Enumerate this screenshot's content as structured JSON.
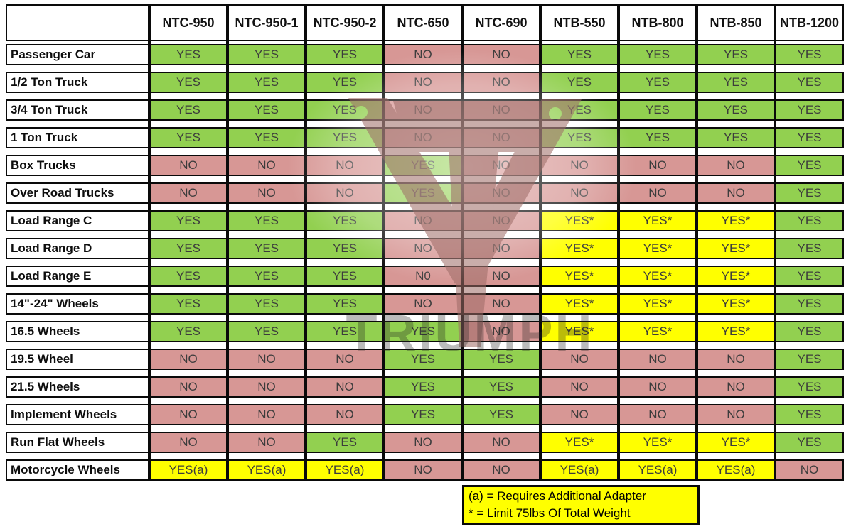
{
  "chart_data": {
    "type": "table",
    "columns": [
      "NTC-950",
      "NTC-950-1",
      "NTC-950-2",
      "NTC-650",
      "NTC-690",
      "NTB-550",
      "NTB-800",
      "NTB-850",
      "NTB-1200"
    ],
    "rows": [
      {
        "label": "Passenger Car",
        "values": [
          "YES",
          "YES",
          "YES",
          "NO",
          "NO",
          "YES",
          "YES",
          "YES",
          "YES"
        ]
      },
      {
        "label": "1/2 Ton Truck",
        "values": [
          "YES",
          "YES",
          "YES",
          "NO",
          "NO",
          "YES",
          "YES",
          "YES",
          "YES"
        ]
      },
      {
        "label": "3/4 Ton Truck",
        "values": [
          "YES",
          "YES",
          "YES",
          "NO",
          "NO",
          "YES",
          "YES",
          "YES",
          "YES"
        ]
      },
      {
        "label": "1 Ton Truck",
        "values": [
          "YES",
          "YES",
          "YES",
          "NO",
          "NO",
          "YES",
          "YES",
          "YES",
          "YES"
        ]
      },
      {
        "label": "Box Trucks",
        "values": [
          "NO",
          "NO",
          "NO",
          "YES",
          "NO",
          "NO",
          "NO",
          "NO",
          "YES"
        ]
      },
      {
        "label": "Over Road Trucks",
        "values": [
          "NO",
          "NO",
          "NO",
          "YES",
          "NO",
          "NO",
          "NO",
          "NO",
          "YES"
        ]
      },
      {
        "label": "Load Range C",
        "values": [
          "YES",
          "YES",
          "YES",
          "NO",
          "NO",
          "YES*",
          "YES*",
          "YES*",
          "YES"
        ]
      },
      {
        "label": "Load Range D",
        "values": [
          "YES",
          "YES",
          "YES",
          "NO",
          "NO",
          "YES*",
          "YES*",
          "YES*",
          "YES"
        ]
      },
      {
        "label": "Load Range E",
        "values": [
          "YES",
          "YES",
          "YES",
          "N0",
          "NO",
          "YES*",
          "YES*",
          "YES*",
          "YES"
        ]
      },
      {
        "label": "14\"-24\" Wheels",
        "values": [
          "YES",
          "YES",
          "YES",
          "NO",
          "NO",
          "YES*",
          "YES*",
          "YES*",
          "YES"
        ]
      },
      {
        "label": "16.5 Wheels",
        "values": [
          "YES",
          "YES",
          "YES",
          "YES",
          "NO",
          "YES*",
          "YES*",
          "YES*",
          "YES"
        ]
      },
      {
        "label": "19.5 Wheel",
        "values": [
          "NO",
          "NO",
          "NO",
          "YES",
          "YES",
          "NO",
          "NO",
          "NO",
          "YES"
        ]
      },
      {
        "label": "21.5 Wheels",
        "values": [
          "NO",
          "NO",
          "NO",
          "YES",
          "YES",
          "NO",
          "NO",
          "NO",
          "YES"
        ]
      },
      {
        "label": "Implement Wheels",
        "values": [
          "NO",
          "NO",
          "NO",
          "YES",
          "YES",
          "NO",
          "NO",
          "NO",
          "YES"
        ]
      },
      {
        "label": "Run Flat Wheels",
        "values": [
          "NO",
          "NO",
          "YES",
          "NO",
          "NO",
          "YES*",
          "YES*",
          "YES*",
          "YES"
        ]
      },
      {
        "label": "Motorcycle Wheels",
        "values": [
          "YES(a)",
          "YES(a)",
          "YES(a)",
          "NO",
          "NO",
          "YES(a)",
          "YES(a)",
          "YES(a)",
          "NO"
        ]
      }
    ],
    "legend": [
      "(a) = Requires Additional Adapter",
      "* = Limit 75lbs Of Total Weight"
    ],
    "watermark_text": "TRIUMPH",
    "layout": {
      "grid": "off",
      "legend_position": "bottom-center"
    }
  },
  "colors": {
    "yes_green": "#92d050",
    "no_red": "#d79795",
    "conditional_yellow": "#ffff00",
    "legend_bg": "#ffff00",
    "border_black": "#0a0a0a",
    "watermark_red": "#9d6b66"
  }
}
